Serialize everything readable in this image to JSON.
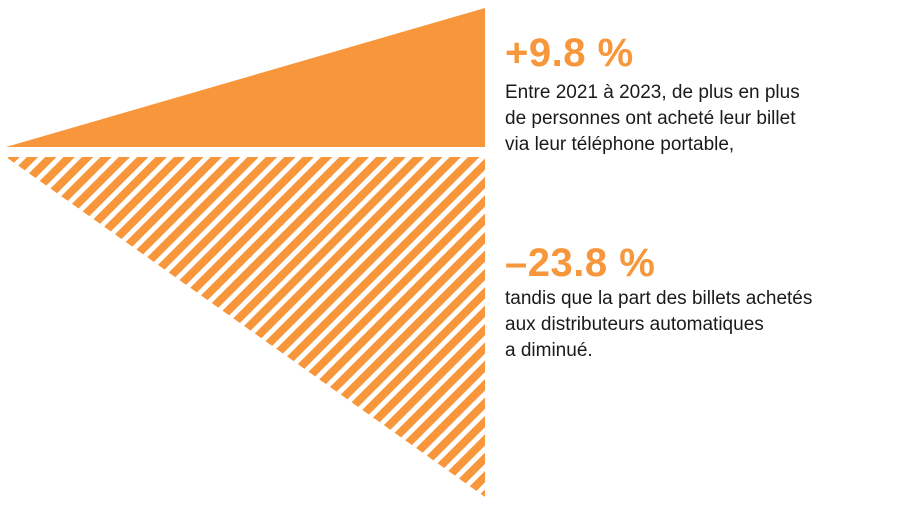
{
  "chart_data": {
    "type": "area",
    "series": [
      {
        "value": "+9.8 %",
        "number": 9.8,
        "description": [
          "Entre 2021 à 2023, de plus en plus",
          "de personnes ont acheté leur billet",
          "via leur téléphone portable,"
        ],
        "fill": "solid"
      },
      {
        "value": "–23.8 %",
        "number": -23.8,
        "description": [
          "tandis que la part des billets achetés",
          "aux distributeurs automatiques",
          "a diminué."
        ],
        "fill": "hatched"
      }
    ]
  },
  "colors": {
    "accent": "#F7963A",
    "text": "#1a1a1a",
    "background": "#ffffff"
  }
}
